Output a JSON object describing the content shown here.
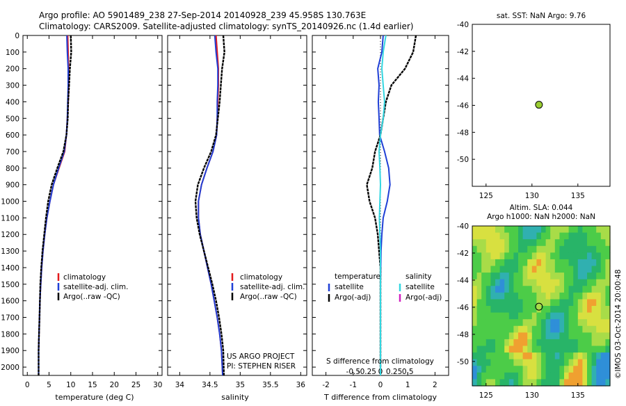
{
  "header": {
    "line1": "Argo profile: AO 5901489_238 27-Sep-2014 20140928_239 45.958S 130.763E",
    "line2": "Climatology: CARS2009. Satellite-adjusted climatology: synTS_20140926.nc (1.4d earlier)"
  },
  "colors": {
    "climatology": "#e31a1c",
    "satellite": "#1f3fd6",
    "argo": "#000000",
    "satellite_s": "#33d6e0",
    "argo_s": "#d020c0",
    "marker": "#9acd32"
  },
  "watermark": "©IMOS 03-Oct-2014 20:00:48",
  "chart_data": [
    {
      "type": "line",
      "panel": "temperature",
      "xlabel": "temperature (deg C)",
      "xlim": [
        -1,
        31
      ],
      "xticks": [
        "0",
        "5",
        "10",
        "15",
        "20",
        "25",
        "30"
      ],
      "xtick_values": [
        0,
        5,
        10,
        15,
        20,
        25,
        30
      ],
      "ylim": [
        0,
        2050
      ],
      "yticks": [
        "0",
        "100",
        "200",
        "300",
        "400",
        "500",
        "600",
        "700",
        "800",
        "900",
        "1000",
        "1100",
        "1200",
        "1300",
        "1400",
        "1500",
        "1600",
        "1700",
        "1800",
        "1900",
        "2000"
      ],
      "ytick_values": [
        0,
        100,
        200,
        300,
        400,
        500,
        600,
        700,
        800,
        900,
        1000,
        1100,
        1200,
        1300,
        1400,
        1500,
        1600,
        1700,
        1800,
        1900,
        2000
      ],
      "legend": [
        "climatology",
        "satellite-adj. clim.",
        "Argo(..raw -QC)"
      ],
      "series": [
        {
          "name": "climatology",
          "color_key": "climatology",
          "x": [
            9.3,
            9.4,
            9.5,
            9.5,
            9.4,
            9.2,
            9.0,
            8.6,
            7.3,
            6.0,
            5.2,
            4.5,
            4.0,
            3.6,
            3.3,
            3.1,
            2.9,
            2.8,
            2.7,
            2.6,
            2.6
          ],
          "y": [
            0,
            100,
            200,
            300,
            400,
            500,
            600,
            700,
            800,
            900,
            1000,
            1100,
            1200,
            1300,
            1400,
            1500,
            1600,
            1700,
            1800,
            1900,
            2050
          ]
        },
        {
          "name": "satellite-adj. clim.",
          "color_key": "satellite",
          "x": [
            9.1,
            9.2,
            9.4,
            9.4,
            9.3,
            9.2,
            9.0,
            8.5,
            7.2,
            6.0,
            5.2,
            4.5,
            4.0,
            3.6,
            3.3,
            3.1,
            2.9,
            2.8,
            2.7,
            2.6,
            2.6
          ],
          "y": [
            0,
            100,
            200,
            300,
            400,
            500,
            600,
            700,
            800,
            900,
            1000,
            1100,
            1200,
            1300,
            1400,
            1500,
            1600,
            1700,
            1800,
            1900,
            2050
          ]
        },
        {
          "name": "Argo(..raw -QC)",
          "color_key": "argo",
          "x": [
            10.0,
            10.1,
            9.8,
            9.6,
            9.4,
            9.3,
            9.0,
            8.3,
            6.9,
            5.6,
            4.8,
            4.3,
            3.9,
            3.5,
            3.2,
            3.0,
            2.9,
            2.8,
            2.7,
            2.6,
            2.6
          ],
          "y": [
            0,
            100,
            200,
            300,
            400,
            500,
            600,
            700,
            800,
            900,
            1000,
            1100,
            1200,
            1300,
            1400,
            1500,
            1600,
            1700,
            1800,
            1900,
            2050
          ]
        }
      ]
    },
    {
      "type": "line",
      "panel": "salinity",
      "xlabel": "salinity",
      "xlim": [
        33.8,
        36.1
      ],
      "xticks": [
        "34",
        "34.5",
        "35",
        "35.5",
        "36"
      ],
      "xtick_values": [
        34,
        34.5,
        35,
        35.5,
        36
      ],
      "ylim": [
        0,
        2050
      ],
      "legend": [
        "climatology",
        "satellite-adj. clim.",
        "Argo(..raw -QC)"
      ],
      "annotation": [
        "US ARGO PROJECT",
        "PI: STEPHEN RISER"
      ],
      "series": [
        {
          "name": "climatology",
          "color_key": "climatology",
          "x": [
            34.6,
            34.62,
            34.64,
            34.64,
            34.63,
            34.62,
            34.61,
            34.55,
            34.45,
            34.36,
            34.31,
            34.31,
            34.34,
            34.4,
            34.46,
            34.52,
            34.57,
            34.62,
            34.66,
            34.69,
            34.71
          ],
          "y": [
            0,
            100,
            200,
            300,
            400,
            500,
            600,
            700,
            800,
            900,
            1000,
            1100,
            1200,
            1300,
            1400,
            1500,
            1600,
            1700,
            1800,
            1900,
            2050
          ]
        },
        {
          "name": "satellite-adj. clim.",
          "color_key": "satellite",
          "x": [
            34.58,
            34.6,
            34.63,
            34.63,
            34.62,
            34.62,
            34.61,
            34.55,
            34.45,
            34.36,
            34.31,
            34.31,
            34.34,
            34.4,
            34.46,
            34.52,
            34.57,
            34.62,
            34.66,
            34.69,
            34.71
          ],
          "y": [
            0,
            100,
            200,
            300,
            400,
            500,
            600,
            700,
            800,
            900,
            1000,
            1100,
            1200,
            1300,
            1400,
            1500,
            1600,
            1700,
            1800,
            1900,
            2050
          ]
        },
        {
          "name": "Argo(..raw -QC)",
          "color_key": "argo",
          "x": [
            34.72,
            34.74,
            34.7,
            34.68,
            34.66,
            34.63,
            34.6,
            34.52,
            34.4,
            34.3,
            34.26,
            34.28,
            34.33,
            34.4,
            34.47,
            34.54,
            34.6,
            34.65,
            34.69,
            34.72,
            34.73
          ],
          "y": [
            0,
            100,
            200,
            300,
            400,
            500,
            600,
            700,
            800,
            900,
            1000,
            1100,
            1200,
            1300,
            1400,
            1500,
            1600,
            1700,
            1800,
            1900,
            2050
          ]
        }
      ]
    },
    {
      "type": "line",
      "panel": "difference",
      "xlabel": "T difference from climatology",
      "xlabel_top": "S difference from climatology",
      "xlim": [
        -2.5,
        2.5
      ],
      "xticks": [
        "-2",
        "-1",
        "0",
        "1",
        "2"
      ],
      "xtick_values": [
        -2,
        -1,
        0,
        1,
        2
      ],
      "sticks": [
        "-0.5",
        "-0.25",
        "0",
        "0.25",
        "0.5"
      ],
      "stick_values": [
        -1,
        -0.5,
        0,
        0.5,
        1
      ],
      "ylim": [
        0,
        2050
      ],
      "legend_headers": [
        "temperature",
        "salinity"
      ],
      "legend_left": [
        "satellite",
        "Argo(-adj)"
      ],
      "legend_right": [
        "satellite",
        "Argo(-adj)"
      ],
      "series": [
        {
          "name": "satellite",
          "color_key": "satellite",
          "x": [
            0.1,
            0.05,
            -0.1,
            -0.05,
            -0.08,
            -0.05,
            -0.03,
            0.15,
            0.3,
            0.35,
            0.25,
            0.1,
            0.05,
            0.02,
            0.01,
            0.0,
            0.0,
            0.0,
            0.0,
            0.0,
            0.0
          ],
          "y": [
            0,
            100,
            200,
            300,
            400,
            500,
            600,
            700,
            800,
            900,
            1000,
            1100,
            1200,
            1300,
            1400,
            1500,
            1600,
            1700,
            1800,
            1900,
            2050
          ]
        },
        {
          "name": "Argo(-adj)",
          "color_key": "argo",
          "x": [
            1.3,
            1.2,
            0.9,
            0.4,
            0.2,
            0.1,
            0.0,
            -0.2,
            -0.3,
            -0.5,
            -0.4,
            -0.2,
            -0.1,
            -0.05,
            0.0,
            0.0,
            0.0,
            0.0,
            0.0,
            0.0,
            0.0
          ],
          "y": [
            0,
            100,
            200,
            300,
            400,
            500,
            600,
            700,
            800,
            900,
            1000,
            1100,
            1200,
            1300,
            1400,
            1500,
            1600,
            1700,
            1800,
            1900,
            2050
          ]
        },
        {
          "name": "satellite",
          "color_key": "satellite_s",
          "x": [
            0.2,
            0.1,
            0.05,
            0.1,
            0.15,
            0.1,
            0.0,
            -0.05,
            -0.02,
            0.0,
            -0.02,
            -0.04,
            -0.02,
            0.0,
            0.0,
            0.0,
            0.0,
            0.0,
            0.0,
            0.0,
            0.0
          ],
          "y": [
            0,
            100,
            200,
            300,
            400,
            500,
            600,
            700,
            800,
            900,
            1000,
            1100,
            1200,
            1300,
            1400,
            1500,
            1600,
            1700,
            1800,
            1900,
            2050
          ]
        }
      ]
    },
    {
      "type": "scatter",
      "panel": "sst",
      "title": "sat. SST: NaN Argo: 9.76",
      "xlim": [
        123.5,
        138.5
      ],
      "ylim": [
        -52,
        -40
      ],
      "xticks": [
        "125",
        "130",
        "135"
      ],
      "xtick_values": [
        125,
        130,
        135
      ],
      "yticks": [
        "-40",
        "-42",
        "-44",
        "-46",
        "-48",
        "-50"
      ],
      "ytick_values": [
        -40,
        -42,
        -44,
        -46,
        -48,
        -50
      ],
      "points": [
        {
          "x": 130.763,
          "y": -45.958
        }
      ]
    },
    {
      "type": "heatmap",
      "panel": "sla",
      "title": [
        "Altim. SLA: 0.044",
        "Argo h1000: NaN h2000: NaN"
      ],
      "xlim": [
        123.5,
        138.5
      ],
      "ylim": [
        -51.8,
        -40
      ],
      "xticks": [
        "125",
        "130",
        "135"
      ],
      "xtick_values": [
        125,
        130,
        135
      ],
      "yticks": [
        "-40",
        "-42",
        "-44",
        "-46",
        "-48",
        "-50"
      ],
      "ytick_values": [
        -40,
        -42,
        -44,
        -46,
        -48,
        -50
      ],
      "points": [
        {
          "x": 130.763,
          "y": -45.958
        }
      ]
    }
  ]
}
